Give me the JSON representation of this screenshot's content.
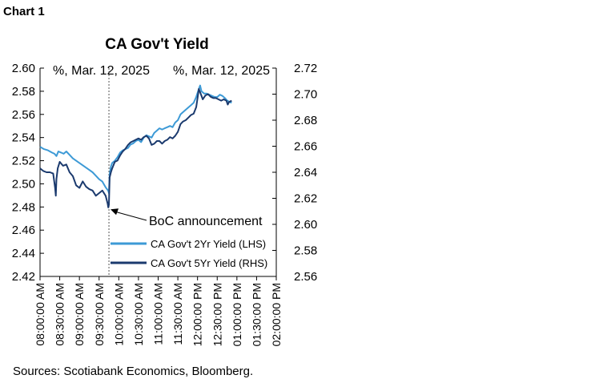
{
  "chart_label": "Chart 1",
  "source": "Sources: Scotiabank Economics, Bloomberg.",
  "colors": {
    "two_year": "#3d9ad6",
    "five_year": "#1b3a6e",
    "axis": "#000000",
    "event_line": "#555555"
  },
  "chart_data": {
    "type": "line",
    "title": "CA Gov't Yield",
    "left_axis_label": "%, Mar. 12, 2025",
    "right_axis_label": "%, Mar. 12, 2025",
    "ylim_left": [
      2.42,
      2.6
    ],
    "ylim_right": [
      2.56,
      2.72
    ],
    "yticks_left": [
      "2.60",
      "2.58",
      "2.56",
      "2.54",
      "2.52",
      "2.50",
      "2.48",
      "2.46",
      "2.44",
      "2.42"
    ],
    "yticks_right": [
      "2.72",
      "2.70",
      "2.68",
      "2.66",
      "2.64",
      "2.62",
      "2.60",
      "2.58",
      "2.56"
    ],
    "x_range_minutes": [
      0,
      360
    ],
    "x_tick_minutes": [
      0,
      30,
      60,
      90,
      120,
      150,
      180,
      210,
      240,
      270,
      300,
      330,
      360
    ],
    "x_tick_labels": [
      "08:00:00 AM",
      "08:30:00 AM",
      "09:00:00 AM",
      "09:30:00 AM",
      "10:00:00 AM",
      "10:30:00 AM",
      "11:00:00 AM",
      "11:30:00 AM",
      "12:00:00 PM",
      "12:30:00 PM",
      "01:00:00 PM",
      "01:30:00 PM",
      "02:00:00 PM"
    ],
    "event": {
      "minute": 105,
      "label": "BoC announcement",
      "pointer_value": 2.478
    },
    "series": [
      {
        "name": "CA Gov't 2Yr Yield (LHS)",
        "axis": "left",
        "x": [
          0,
          6,
          12,
          18,
          22,
          25,
          28,
          32,
          36,
          40,
          45,
          50,
          55,
          60,
          65,
          70,
          75,
          80,
          85,
          90,
          95,
          100,
          104,
          105,
          106,
          108,
          110,
          114,
          118,
          122,
          126,
          130,
          134,
          138,
          142,
          146,
          150,
          154,
          158,
          162,
          166,
          170,
          174,
          178,
          182,
          186,
          190,
          194,
          198,
          202,
          206,
          210,
          214,
          218,
          222,
          226,
          230,
          234,
          238,
          242,
          244,
          246,
          250,
          254,
          258,
          262,
          266,
          270,
          274,
          278,
          282,
          285,
          288,
          292
        ],
        "values": [
          2.532,
          2.53,
          2.529,
          2.527,
          2.526,
          2.524,
          2.528,
          2.527,
          2.526,
          2.528,
          2.525,
          2.522,
          2.52,
          2.518,
          2.516,
          2.514,
          2.512,
          2.51,
          2.507,
          2.504,
          2.502,
          2.497,
          2.494,
          2.492,
          2.508,
          2.515,
          2.518,
          2.52,
          2.523,
          2.527,
          2.529,
          2.53,
          2.531,
          2.534,
          2.535,
          2.537,
          2.538,
          2.536,
          2.54,
          2.542,
          2.541,
          2.54,
          2.544,
          2.546,
          2.548,
          2.547,
          2.548,
          2.549,
          2.55,
          2.549,
          2.553,
          2.555,
          2.56,
          2.562,
          2.564,
          2.566,
          2.568,
          2.57,
          2.575,
          2.582,
          2.585,
          2.58,
          2.578,
          2.578,
          2.577,
          2.576,
          2.575,
          2.575,
          2.577,
          2.576,
          2.574,
          2.572,
          2.571,
          2.57
        ]
      },
      {
        "name": "CA Gov't 5Yr Yield (RHS)",
        "axis": "right",
        "x": [
          0,
          5,
          10,
          15,
          20,
          23,
          24,
          25,
          27,
          30,
          35,
          40,
          45,
          50,
          55,
          60,
          65,
          70,
          75,
          80,
          85,
          90,
          95,
          100,
          103,
          104,
          105,
          106,
          108,
          110,
          114,
          118,
          122,
          126,
          130,
          134,
          138,
          142,
          146,
          150,
          154,
          158,
          162,
          166,
          170,
          174,
          178,
          182,
          186,
          190,
          194,
          198,
          202,
          206,
          210,
          214,
          218,
          222,
          226,
          230,
          234,
          238,
          240,
          242,
          245,
          248,
          252,
          256,
          260,
          264,
          268,
          272,
          276,
          280,
          284,
          286,
          288,
          292
        ],
        "values": [
          2.643,
          2.641,
          2.64,
          2.64,
          2.639,
          2.628,
          2.622,
          2.635,
          2.643,
          2.648,
          2.645,
          2.646,
          2.64,
          2.637,
          2.63,
          2.628,
          2.633,
          2.629,
          2.627,
          2.626,
          2.622,
          2.624,
          2.626,
          2.622,
          2.616,
          2.613,
          2.615,
          2.636,
          2.64,
          2.643,
          2.648,
          2.649,
          2.653,
          2.656,
          2.658,
          2.661,
          2.663,
          2.664,
          2.665,
          2.666,
          2.665,
          2.667,
          2.668,
          2.666,
          2.661,
          2.662,
          2.664,
          2.664,
          2.662,
          2.664,
          2.665,
          2.667,
          2.666,
          2.668,
          2.671,
          2.677,
          2.679,
          2.68,
          2.682,
          2.684,
          2.685,
          2.69,
          2.697,
          2.704,
          2.7,
          2.696,
          2.699,
          2.7,
          2.698,
          2.697,
          2.697,
          2.696,
          2.695,
          2.696,
          2.695,
          2.692,
          2.694,
          2.695
        ]
      }
    ]
  }
}
